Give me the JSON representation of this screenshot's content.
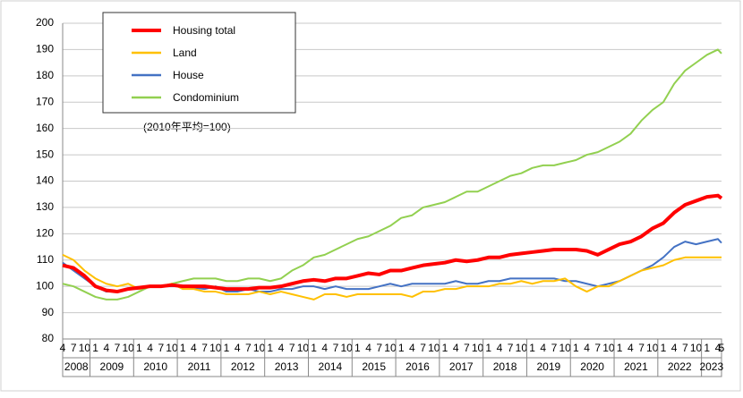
{
  "chart_data": {
    "type": "line",
    "categories": [
      "4",
      "7",
      "10",
      "1",
      "4",
      "7",
      "10",
      "1",
      "4",
      "7",
      "10",
      "1",
      "4",
      "7",
      "10",
      "1",
      "4",
      "7",
      "10",
      "1",
      "4",
      "7",
      "10",
      "1",
      "4",
      "7",
      "10",
      "1",
      "4",
      "7",
      "10",
      "1",
      "4",
      "7",
      "10",
      "1",
      "4",
      "7",
      "10",
      "1",
      "4",
      "7",
      "10",
      "1",
      "4",
      "7",
      "10",
      "1",
      "4",
      "7",
      "10",
      "1",
      "4",
      "7",
      "10",
      "1",
      "4",
      "7",
      "10",
      "1",
      "4",
      "5"
    ],
    "x_groups": [
      "2008",
      "2009",
      "2010",
      "2011",
      "2012",
      "2013",
      "2014",
      "2015",
      "2016",
      "2017",
      "2018",
      "2019",
      "2020",
      "2021",
      "2022",
      "2023"
    ],
    "annotation": "(2010年平均=100)",
    "ylim": [
      80,
      200
    ],
    "yticks": [
      80,
      90,
      100,
      110,
      120,
      130,
      140,
      150,
      160,
      170,
      180,
      190,
      200
    ],
    "grid": true,
    "legend": "upper left",
    "series": [
      {
        "name": "Housing total",
        "color": "#ff0000",
        "values": [
          108,
          107,
          104,
          100,
          98.5,
          98,
          99,
          99.5,
          100,
          100,
          100.5,
          100,
          100,
          100,
          99.5,
          99,
          99,
          99,
          99.5,
          99.5,
          100,
          101,
          102,
          102.5,
          102,
          103,
          103,
          104,
          105,
          104.5,
          106,
          106,
          107,
          108,
          108.5,
          109,
          110,
          109.5,
          110,
          111,
          111,
          112,
          112.5,
          113,
          113.5,
          114,
          114,
          114,
          113.5,
          112,
          114,
          116,
          117,
          119,
          122,
          124,
          128,
          131,
          132.5,
          134,
          134.5,
          133.5
        ]
      },
      {
        "name": "Land",
        "color": "#ffc000",
        "values": [
          112,
          110,
          106,
          103,
          101,
          100,
          101,
          99,
          100,
          100,
          101,
          99,
          99,
          98,
          98,
          97,
          97,
          97,
          98,
          97,
          98,
          97,
          96,
          95,
          97,
          97,
          96,
          97,
          97,
          97,
          97,
          97,
          96,
          98,
          98,
          99,
          99,
          100,
          100,
          100,
          101,
          101,
          102,
          101,
          102,
          102,
          103,
          100,
          98,
          100,
          100,
          102,
          104,
          106,
          107,
          108,
          110,
          111,
          111,
          111,
          111,
          111
        ]
      },
      {
        "name": "House",
        "color": "#4472c4",
        "values": [
          109,
          106,
          103,
          100,
          98,
          98,
          99,
          99,
          100,
          100,
          100,
          100,
          99.5,
          99,
          100,
          98,
          98,
          99,
          98,
          98,
          99,
          99,
          100,
          100,
          99,
          100,
          99,
          99,
          99,
          100,
          101,
          100,
          101,
          101,
          101,
          101,
          102,
          101,
          101,
          102,
          102,
          103,
          103,
          103,
          103,
          103,
          102,
          102,
          101,
          100,
          101,
          102,
          104,
          106,
          108,
          111,
          115,
          117,
          116,
          117,
          118,
          116.5
        ]
      },
      {
        "name": "Condominium",
        "color": "#92d050",
        "values": [
          101,
          100,
          98,
          96,
          95,
          95,
          96,
          98,
          100,
          100,
          101,
          102,
          103,
          103,
          103,
          102,
          102,
          103,
          103,
          102,
          103,
          106,
          108,
          111,
          112,
          114,
          116,
          118,
          119,
          121,
          123,
          126,
          127,
          130,
          131,
          132,
          134,
          136,
          136,
          138,
          140,
          142,
          143,
          145,
          146,
          146,
          147,
          148,
          150,
          151,
          153,
          155,
          158,
          163,
          167,
          170,
          177,
          182,
          185,
          188,
          190,
          188.5
        ]
      }
    ]
  }
}
